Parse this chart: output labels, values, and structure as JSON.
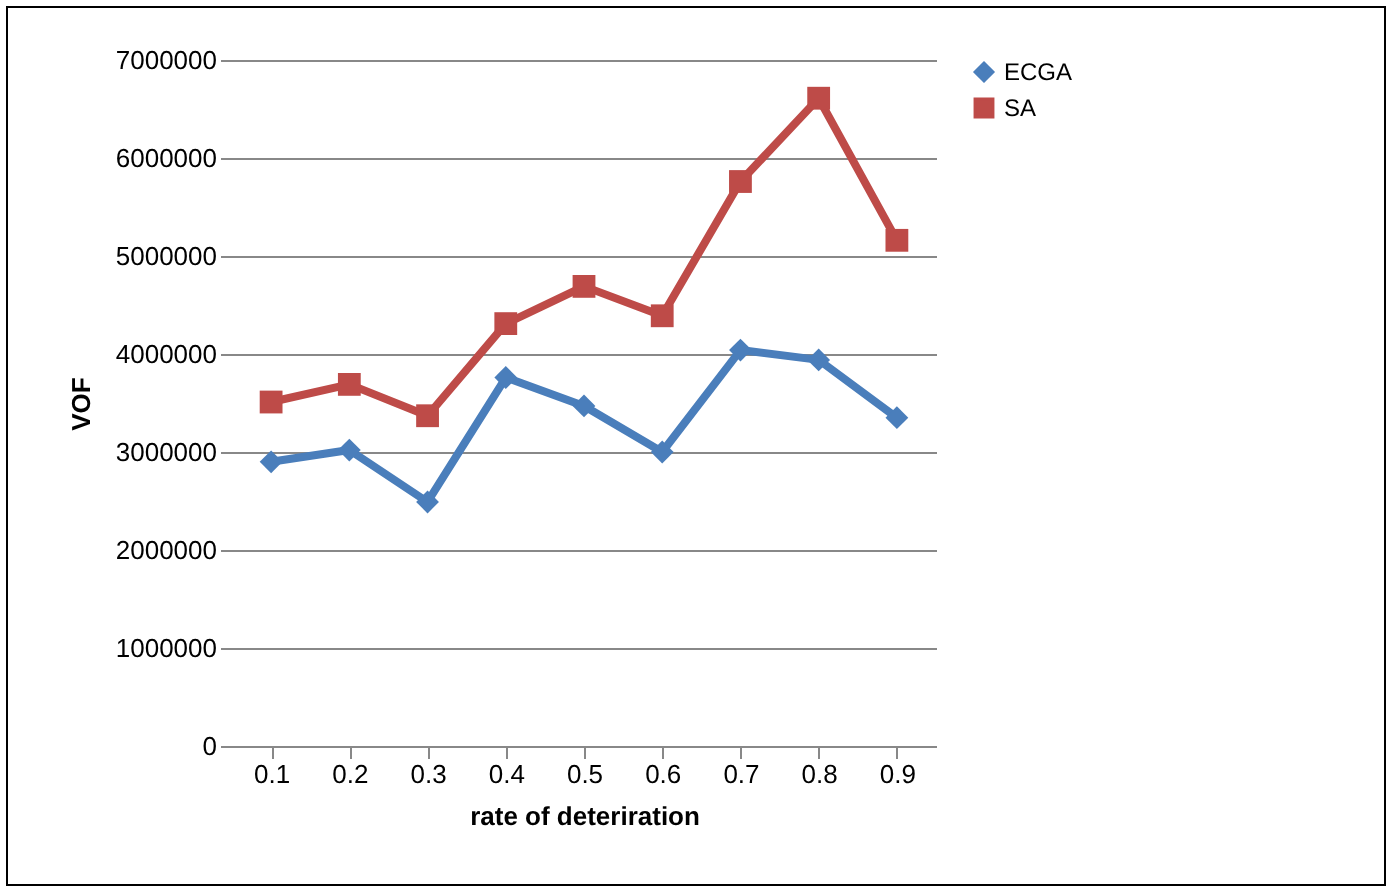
{
  "chart_data": {
    "type": "line",
    "xlabel": "rate of deteriration",
    "ylabel": "VOF",
    "categories": [
      "0.1",
      "0.2",
      "0.3",
      "0.4",
      "0.5",
      "0.6",
      "0.7",
      "0.8",
      "0.9"
    ],
    "series": [
      {
        "name": "ECGA",
        "color": "#4a7ebb",
        "marker": "diamond",
        "values": [
          2900000,
          3020000,
          2490000,
          3760000,
          3470000,
          3000000,
          4040000,
          3940000,
          3350000
        ]
      },
      {
        "name": "SA",
        "color": "#be4b48",
        "marker": "square",
        "values": [
          3510000,
          3690000,
          3370000,
          4310000,
          4690000,
          4390000,
          5760000,
          6610000,
          5160000
        ]
      }
    ],
    "ylim": [
      0,
      7000000
    ],
    "yticks": [
      0,
      1000000,
      2000000,
      3000000,
      4000000,
      5000000,
      6000000,
      7000000
    ],
    "grid": "y",
    "legend": "right",
    "line_style": "solid"
  }
}
